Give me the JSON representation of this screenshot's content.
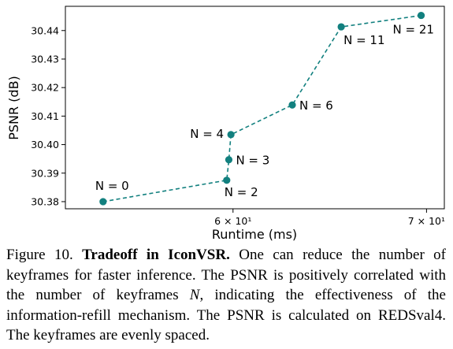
{
  "chart_data": {
    "type": "line",
    "xlabel": "Runtime (ms)",
    "ylabel": "PSNR (dB)",
    "x_scale": "log",
    "xlim": [
      52.5,
      71.0
    ],
    "ylim": [
      30.3775,
      30.4485
    ],
    "x_ticks": [
      {
        "value": 60,
        "label": "6 × 10¹"
      },
      {
        "value": 70,
        "label": "7 × 10¹"
      }
    ],
    "y_ticks": [
      30.38,
      30.39,
      30.4,
      30.41,
      30.42,
      30.43,
      30.44
    ],
    "y_tick_labels": [
      "30.38",
      "30.39",
      "30.40",
      "30.41",
      "30.42",
      "30.43",
      "30.44"
    ],
    "grid": false,
    "legend": "none",
    "line_style": "dashed",
    "color": "#12807f",
    "series": [
      {
        "points": [
          {
            "x": 54.1,
            "y": 30.38,
            "label": "N = 0",
            "label_pos": "above-left"
          },
          {
            "x": 59.7,
            "y": 30.3875,
            "label": "N = 2",
            "label_pos": "below"
          },
          {
            "x": 59.8,
            "y": 30.3947,
            "label": "N = 3",
            "label_pos": "right"
          },
          {
            "x": 59.9,
            "y": 30.4035,
            "label": "N = 4",
            "label_pos": "left"
          },
          {
            "x": 62.9,
            "y": 30.4139,
            "label": "N = 6",
            "label_pos": "right"
          },
          {
            "x": 65.4,
            "y": 30.4413,
            "label": "N = 11",
            "label_pos": "below-right"
          },
          {
            "x": 69.7,
            "y": 30.4453,
            "label": "N = 21",
            "label_pos": "below-left"
          }
        ]
      }
    ]
  },
  "caption": {
    "figure_label": "Figure 10.",
    "bold_title": "Tradeoff in IconVSR.",
    "text_1": " One can reduce the number of keyframes for faster inference. The PSNR is positively correlated with the number of keyframes ",
    "italic_var": "N",
    "text_2": ", indicating the effectiveness of the information-refill mechanism. The PSNR is calculated on REDSval4. The keyframes are evenly spaced."
  }
}
